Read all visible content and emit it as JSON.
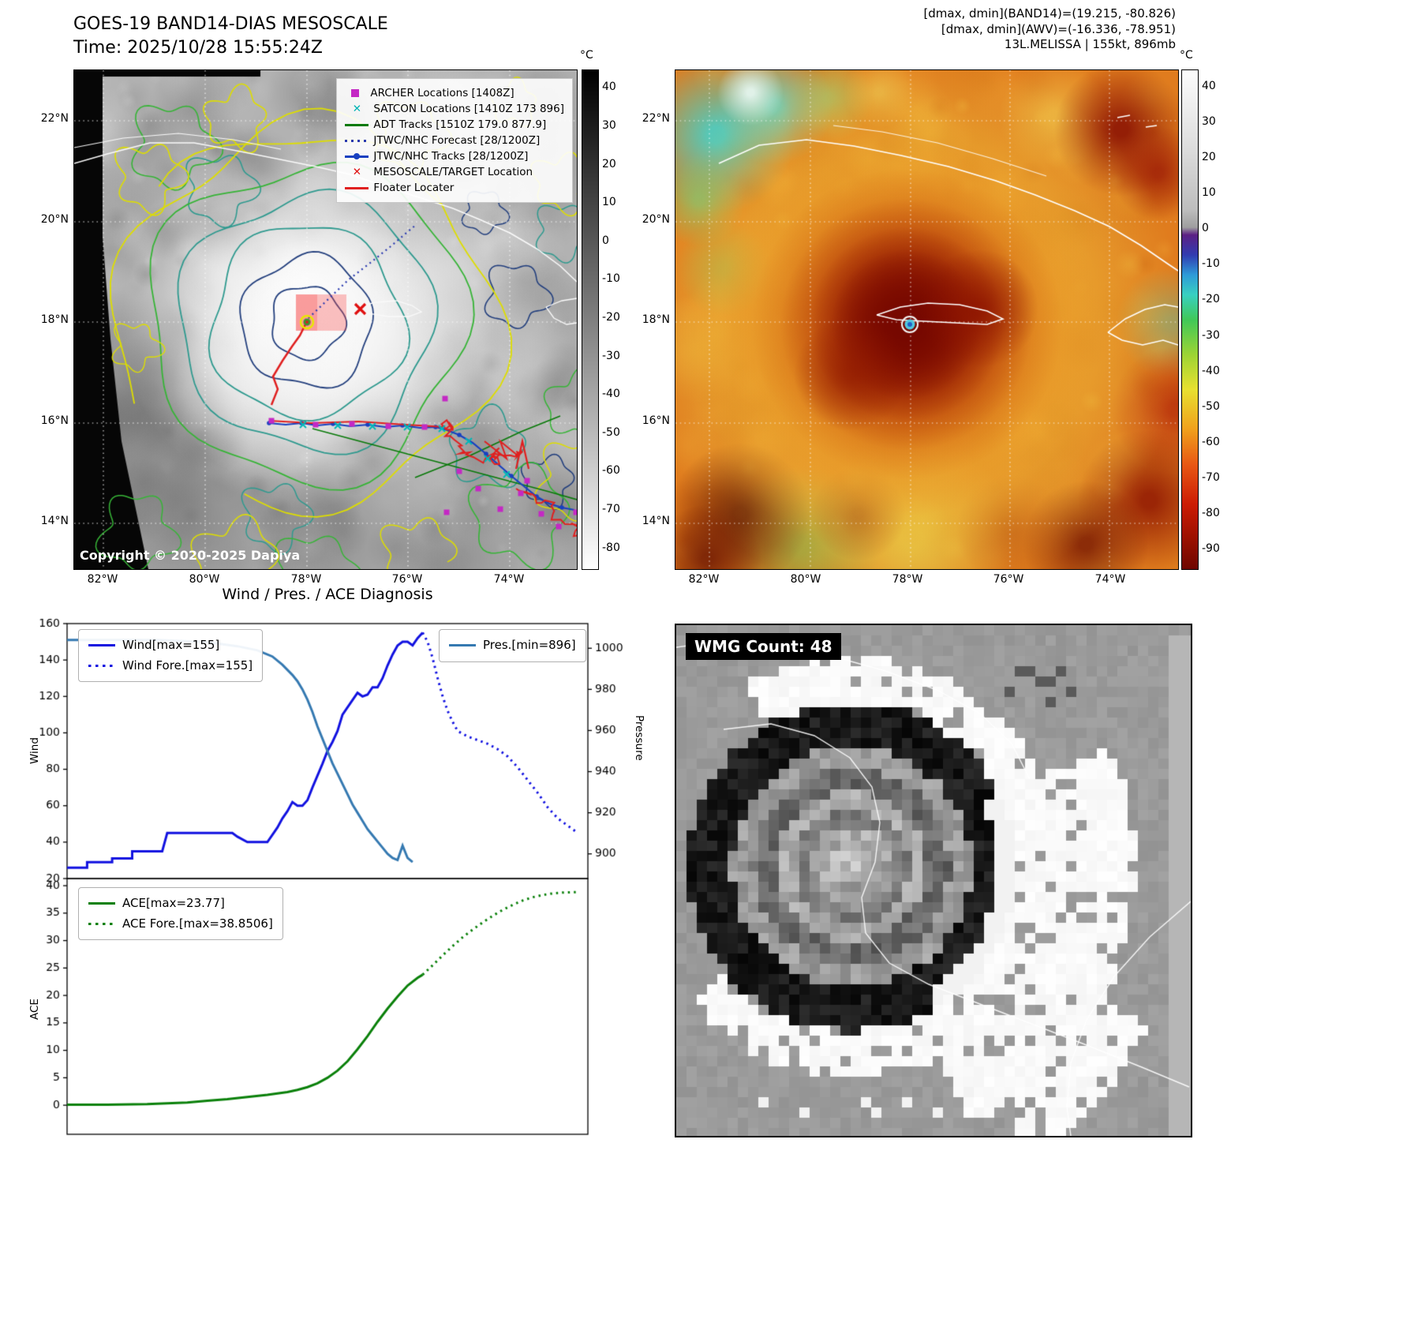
{
  "header": {
    "title": "GOES-19 BAND14-DIAS MESOSCALE",
    "time_line": "Time: 2025/10/28 15:55:24Z",
    "info_line1": "[dmax, dmin](BAND14)=(19.215, -80.826)",
    "info_line2": "[dmax, dmin](AWV)=(-16.336, -78.951)",
    "info_line3": "13L.MELISSA | 155kt, 896mb"
  },
  "map_left": {
    "legend": [
      {
        "label": "ARCHER Locations [1408Z]",
        "marker": "square",
        "color": "#c428c4"
      },
      {
        "label": "SATCON Locations [1410Z 173 896]",
        "marker": "x",
        "color": "#00b4b4"
      },
      {
        "label": "ADT Tracks [1510Z 179.0 877.9]",
        "marker": "line",
        "color": "#0a7a0a"
      },
      {
        "label": "JTWC/NHC Forecast [28/1200Z]",
        "marker": "dotted",
        "color": "#2a3ab0"
      },
      {
        "label": "JTWC/NHC Tracks [28/1200Z]",
        "marker": "line-dot",
        "color": "#1840c0"
      },
      {
        "label": "MESOSCALE/TARGET Location",
        "marker": "x",
        "color": "#e01010"
      },
      {
        "label": "Floater Locater",
        "marker": "line",
        "color": "#e02020"
      }
    ],
    "copyright": "Copyright © 2020-2025 Dapiya",
    "lat_labels": [
      "22°N",
      "20°N",
      "18°N",
      "16°N",
      "14°N"
    ],
    "lon_labels": [
      "82°W",
      "80°W",
      "78°W",
      "76°W",
      "74°W"
    ],
    "colorbar": {
      "unit": "°C",
      "ticks": [
        40,
        30,
        20,
        10,
        0,
        -10,
        -20,
        -30,
        -40,
        -50,
        -60,
        -70,
        -80
      ]
    }
  },
  "map_right": {
    "lat_labels": [
      "22°N",
      "20°N",
      "18°N",
      "16°N",
      "14°N"
    ],
    "lon_labels": [
      "82°W",
      "80°W",
      "78°W",
      "76°W",
      "74°W"
    ],
    "colorbar": {
      "unit": "°C",
      "ticks": [
        40,
        30,
        20,
        10,
        0,
        -10,
        -20,
        -30,
        -40,
        -50,
        -60,
        -70,
        -80,
        -90
      ]
    }
  },
  "wmg": {
    "count_label": "WMG Count: 48"
  },
  "chart_data": [
    {
      "type": "line",
      "title": "Wind / Pres. / ACE Diagnosis",
      "ylabel_left": "Wind",
      "ylabel_right": "Pressure",
      "ylim_left": [
        20,
        160
      ],
      "ylim_right": [
        888,
        1012
      ],
      "xlim": [
        0,
        104
      ],
      "yticks_left": [
        20,
        40,
        60,
        80,
        100,
        120,
        140,
        160
      ],
      "yticks_right": [
        900,
        920,
        940,
        960,
        980,
        1000
      ],
      "series": [
        {
          "name": "Wind",
          "legend": "Wind[max=155]",
          "color": "#1212e0",
          "style": "solid",
          "axis": "left",
          "x": [
            0,
            4,
            4,
            9,
            9,
            13,
            13,
            19,
            20,
            26,
            33,
            34,
            36,
            40,
            41,
            42,
            43,
            44,
            45,
            46,
            47,
            48,
            49,
            51,
            52,
            53,
            54,
            55,
            56,
            57,
            58,
            59,
            60,
            61,
            62,
            63,
            64,
            65,
            66,
            67,
            68,
            69,
            70,
            71
          ],
          "y": [
            26,
            26,
            29,
            29,
            31,
            31,
            35,
            35,
            45,
            45,
            45,
            43,
            40,
            40,
            44,
            48,
            53,
            57,
            62,
            60,
            60,
            63,
            70,
            83,
            90,
            95,
            101,
            110,
            114,
            118,
            122,
            120,
            121,
            125,
            125,
            130,
            137,
            143,
            148,
            150,
            150,
            148,
            152,
            155
          ]
        },
        {
          "name": "Wind Fore.",
          "legend": "Wind Fore.[max=155]",
          "color": "#1212e0",
          "style": "dotted",
          "axis": "left",
          "x": [
            71,
            72,
            73,
            74,
            75,
            76,
            77,
            78,
            80,
            82,
            84,
            86,
            88,
            90,
            92,
            94,
            95,
            96,
            97,
            98,
            99,
            100,
            101,
            102
          ],
          "y": [
            155,
            150,
            141,
            130,
            120,
            112,
            106,
            101,
            98,
            96,
            94,
            91,
            87,
            81,
            74,
            67,
            63,
            59,
            56,
            53,
            51,
            49,
            47,
            45
          ]
        },
        {
          "name": "Pres.",
          "legend": "Pres.[min=896]",
          "color": "#3579b1",
          "style": "solid",
          "axis": "right",
          "x": [
            0,
            18,
            28,
            34,
            38,
            41,
            43,
            45,
            46,
            47,
            48,
            49,
            50,
            51,
            52,
            53,
            54,
            55,
            56,
            57,
            58,
            59,
            60,
            61,
            62,
            63,
            64,
            65,
            66,
            67,
            68,
            69
          ],
          "y": [
            1004,
            1004,
            1003,
            1001,
            999,
            996,
            992,
            987,
            984,
            980,
            975,
            969,
            962,
            956,
            950,
            944,
            939,
            934,
            929,
            924,
            920,
            916,
            912,
            909,
            906,
            903,
            900,
            898,
            897,
            904,
            898,
            896
          ]
        }
      ]
    },
    {
      "type": "line",
      "ylabel_left": "ACE",
      "ylim_left": [
        -5.3,
        41.3
      ],
      "xlim": [
        0,
        104
      ],
      "yticks_left": [
        0,
        5,
        10,
        15,
        20,
        25,
        30,
        35,
        40
      ],
      "series": [
        {
          "name": "ACE",
          "legend": "ACE[max=23.77]",
          "color": "#0a800a",
          "style": "solid",
          "axis": "left",
          "x": [
            0,
            8,
            16,
            24,
            28,
            32,
            36,
            40,
            44,
            46,
            48,
            50,
            52,
            54,
            56,
            58,
            60,
            62,
            64,
            66,
            68,
            70,
            71
          ],
          "y": [
            0.1,
            0.1,
            0.2,
            0.5,
            0.8,
            1.1,
            1.5,
            1.9,
            2.4,
            2.8,
            3.3,
            4.0,
            5.0,
            6.3,
            8.0,
            10.2,
            12.6,
            15.2,
            17.6,
            19.8,
            21.8,
            23.2,
            23.77
          ]
        },
        {
          "name": "ACE Fore.",
          "legend": "ACE Fore.[max=38.8506]",
          "color": "#0a800a",
          "style": "dotted",
          "axis": "left",
          "x": [
            71,
            73,
            75,
            77,
            79,
            81,
            83,
            85,
            87,
            89,
            91,
            93,
            95,
            97,
            99,
            102
          ],
          "y": [
            23.77,
            25.5,
            27.3,
            29.0,
            30.6,
            32.0,
            33.3,
            34.5,
            35.6,
            36.5,
            37.3,
            37.9,
            38.3,
            38.6,
            38.75,
            38.85
          ]
        }
      ]
    }
  ]
}
